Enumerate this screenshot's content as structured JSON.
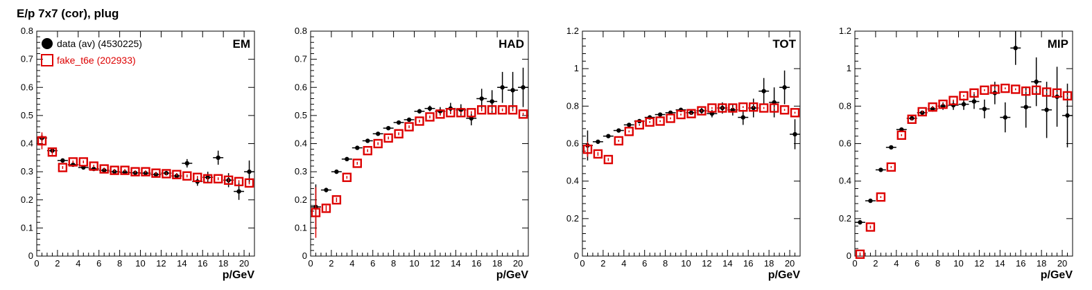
{
  "page": {
    "title": "E/p 7x7 (cor), plug"
  },
  "legend": {
    "entries": [
      {
        "label": "data (av) (4530225)",
        "color": "#000000",
        "marker": "filled-circle"
      },
      {
        "label": "fake_t6e (202933)",
        "color": "#dd0000",
        "marker": "open-square"
      }
    ],
    "placement": "top-left of first panel"
  },
  "colors": {
    "data": "#000000",
    "mc": "#dd0000"
  },
  "chart_data": [
    {
      "type": "scatter",
      "panel_label": "EM",
      "xlabel": "p/GeV",
      "ylabel": "",
      "xlim": [
        0,
        21
      ],
      "ylim": [
        0,
        0.8
      ],
      "xticks": [
        0,
        2,
        4,
        6,
        8,
        10,
        12,
        14,
        16,
        18,
        20
      ],
      "yticks": [
        0,
        0.1,
        0.2,
        0.3,
        0.4,
        0.5,
        0.6,
        0.7,
        0.8
      ],
      "ytick_labels": [
        "0",
        "0.1",
        "0.2",
        "0.3",
        "0.4",
        "0.5",
        "0.6",
        "0.7",
        "0.8"
      ],
      "x": [
        0.5,
        1.5,
        2.5,
        3.5,
        4.5,
        5.5,
        6.5,
        7.5,
        8.5,
        9.5,
        10.5,
        11.5,
        12.5,
        13.5,
        14.5,
        15.5,
        16.5,
        17.5,
        18.5,
        19.5,
        20.5
      ],
      "series": [
        {
          "name": "data (av) (4530225)",
          "marker": "filled-circle",
          "values": [
            0.42,
            0.375,
            0.34,
            0.325,
            0.315,
            0.31,
            0.305,
            0.3,
            0.298,
            0.296,
            0.295,
            0.29,
            0.295,
            0.285,
            0.33,
            0.265,
            0.28,
            0.35,
            0.27,
            0.23,
            0.3
          ],
          "errors": [
            0.012,
            0.008,
            0.005,
            0.005,
            0.005,
            0.005,
            0.005,
            0.005,
            0.005,
            0.005,
            0.006,
            0.006,
            0.008,
            0.01,
            0.015,
            0.015,
            0.02,
            0.025,
            0.025,
            0.03,
            0.04
          ]
        },
        {
          "name": "fake_t6e (202933)",
          "marker": "open-square",
          "values": [
            0.41,
            0.37,
            0.315,
            0.335,
            0.335,
            0.32,
            0.31,
            0.305,
            0.305,
            0.3,
            0.3,
            0.295,
            0.293,
            0.29,
            0.285,
            0.28,
            0.275,
            0.275,
            0.27,
            0.265,
            0.26
          ],
          "errors": [
            0.03,
            0.01,
            0.005,
            0.005,
            0.005,
            0.005,
            0.005,
            0.005,
            0.005,
            0.005,
            0.005,
            0.005,
            0.005,
            0.005,
            0.005,
            0.005,
            0.005,
            0.005,
            0.005,
            0.005,
            0.005
          ]
        }
      ]
    },
    {
      "type": "scatter",
      "panel_label": "HAD",
      "xlabel": "p/GeV",
      "ylabel": "",
      "xlim": [
        0,
        21
      ],
      "ylim": [
        0,
        0.8
      ],
      "xticks": [
        0,
        2,
        4,
        6,
        8,
        10,
        12,
        14,
        16,
        18,
        20
      ],
      "yticks": [
        0,
        0.1,
        0.2,
        0.3,
        0.4,
        0.5,
        0.6,
        0.7,
        0.8
      ],
      "ytick_labels": [
        "0",
        "0.1",
        "0.2",
        "0.3",
        "0.4",
        "0.5",
        "0.6",
        "0.7",
        "0.8"
      ],
      "x": [
        0.5,
        1.5,
        2.5,
        3.5,
        4.5,
        5.5,
        6.5,
        7.5,
        8.5,
        9.5,
        10.5,
        11.5,
        12.5,
        13.5,
        14.5,
        15.5,
        16.5,
        17.5,
        18.5,
        19.5,
        20.5
      ],
      "series": [
        {
          "name": "data (av) (4530225)",
          "marker": "filled-circle",
          "values": [
            0.175,
            0.235,
            0.3,
            0.345,
            0.385,
            0.41,
            0.435,
            0.455,
            0.475,
            0.485,
            0.515,
            0.525,
            0.515,
            0.525,
            0.52,
            0.49,
            0.56,
            0.55,
            0.6,
            0.59,
            0.6
          ],
          "errors": [
            0.08,
            0.008,
            0.005,
            0.005,
            0.005,
            0.005,
            0.005,
            0.005,
            0.005,
            0.005,
            0.008,
            0.01,
            0.015,
            0.02,
            0.02,
            0.025,
            0.035,
            0.04,
            0.055,
            0.065,
            0.07
          ]
        },
        {
          "name": "fake_t6e (202933)",
          "marker": "open-square",
          "values": [
            0.155,
            0.17,
            0.2,
            0.28,
            0.33,
            0.375,
            0.4,
            0.42,
            0.435,
            0.46,
            0.48,
            0.495,
            0.505,
            0.51,
            0.51,
            0.51,
            0.52,
            0.52,
            0.52,
            0.52,
            0.505
          ],
          "errors": [
            0.09,
            0.01,
            0.008,
            0.005,
            0.005,
            0.005,
            0.005,
            0.005,
            0.005,
            0.005,
            0.005,
            0.005,
            0.005,
            0.005,
            0.005,
            0.005,
            0.005,
            0.005,
            0.005,
            0.005,
            0.005
          ]
        }
      ]
    },
    {
      "type": "scatter",
      "panel_label": "TOT",
      "xlabel": "p/GeV",
      "ylabel": "",
      "xlim": [
        0,
        21
      ],
      "ylim": [
        0,
        1.2
      ],
      "xticks": [
        0,
        2,
        4,
        6,
        8,
        10,
        12,
        14,
        16,
        18,
        20
      ],
      "yticks": [
        0,
        0.2,
        0.4,
        0.6,
        0.8,
        1.0,
        1.2
      ],
      "ytick_labels": [
        "0",
        "0.2",
        "0.4",
        "0.6",
        "0.8",
        "1",
        "1.2"
      ],
      "x": [
        0.5,
        1.5,
        2.5,
        3.5,
        4.5,
        5.5,
        6.5,
        7.5,
        8.5,
        9.5,
        10.5,
        11.5,
        12.5,
        13.5,
        14.5,
        15.5,
        16.5,
        17.5,
        18.5,
        19.5,
        20.5
      ],
      "series": [
        {
          "name": "data (av) (4530225)",
          "marker": "filled-circle",
          "values": [
            0.59,
            0.61,
            0.64,
            0.67,
            0.7,
            0.72,
            0.74,
            0.755,
            0.765,
            0.78,
            0.765,
            0.775,
            0.76,
            0.79,
            0.78,
            0.74,
            0.79,
            0.88,
            0.82,
            0.9,
            0.65
          ],
          "errors": [
            0.08,
            0.01,
            0.005,
            0.005,
            0.005,
            0.005,
            0.005,
            0.005,
            0.005,
            0.005,
            0.01,
            0.015,
            0.02,
            0.03,
            0.03,
            0.04,
            0.05,
            0.07,
            0.08,
            0.09,
            0.08
          ]
        },
        {
          "name": "fake_t6e (202933)",
          "marker": "open-square",
          "values": [
            0.57,
            0.545,
            0.515,
            0.615,
            0.665,
            0.7,
            0.715,
            0.72,
            0.735,
            0.755,
            0.76,
            0.775,
            0.79,
            0.79,
            0.79,
            0.795,
            0.795,
            0.79,
            0.79,
            0.78,
            0.765
          ],
          "errors": [
            0.04,
            0.01,
            0.008,
            0.005,
            0.005,
            0.005,
            0.005,
            0.005,
            0.005,
            0.005,
            0.005,
            0.005,
            0.005,
            0.005,
            0.005,
            0.005,
            0.005,
            0.005,
            0.005,
            0.005,
            0.005
          ]
        }
      ]
    },
    {
      "type": "scatter",
      "panel_label": "MIP",
      "xlabel": "p/GeV",
      "ylabel": "",
      "xlim": [
        0,
        21
      ],
      "ylim": [
        0,
        1.2
      ],
      "xticks": [
        0,
        2,
        4,
        6,
        8,
        10,
        12,
        14,
        16,
        18,
        20
      ],
      "yticks": [
        0,
        0.2,
        0.4,
        0.6,
        0.8,
        1.0,
        1.2
      ],
      "ytick_labels": [
        "0",
        "0.2",
        "0.4",
        "0.6",
        "0.8",
        "1",
        "1.2"
      ],
      "x": [
        0.5,
        1.5,
        2.5,
        3.5,
        4.5,
        5.5,
        6.5,
        7.5,
        8.5,
        9.5,
        10.5,
        11.5,
        12.5,
        13.5,
        14.5,
        15.5,
        16.5,
        17.5,
        18.5,
        19.5,
        20.5
      ],
      "series": [
        {
          "name": "data (av) (4530225)",
          "marker": "filled-circle",
          "values": [
            0.18,
            0.295,
            0.46,
            0.58,
            0.675,
            0.735,
            0.765,
            0.785,
            0.8,
            0.805,
            0.81,
            0.825,
            0.785,
            0.87,
            0.74,
            1.11,
            0.795,
            0.93,
            0.78,
            0.85,
            0.75
          ],
          "errors": [
            0.01,
            0.008,
            0.005,
            0.005,
            0.005,
            0.01,
            0.01,
            0.015,
            0.02,
            0.025,
            0.03,
            0.04,
            0.05,
            0.06,
            0.08,
            0.09,
            0.11,
            0.13,
            0.15,
            0.16,
            0.17
          ]
        },
        {
          "name": "fake_t6e (202933)",
          "marker": "open-square",
          "values": [
            0.01,
            0.155,
            0.315,
            0.475,
            0.645,
            0.73,
            0.77,
            0.795,
            0.81,
            0.83,
            0.855,
            0.87,
            0.885,
            0.89,
            0.895,
            0.89,
            0.88,
            0.885,
            0.875,
            0.87,
            0.855
          ],
          "errors": [
            0.01,
            0.008,
            0.005,
            0.005,
            0.005,
            0.005,
            0.005,
            0.005,
            0.005,
            0.005,
            0.005,
            0.005,
            0.005,
            0.005,
            0.005,
            0.005,
            0.005,
            0.005,
            0.005,
            0.005,
            0.005
          ]
        }
      ]
    }
  ]
}
